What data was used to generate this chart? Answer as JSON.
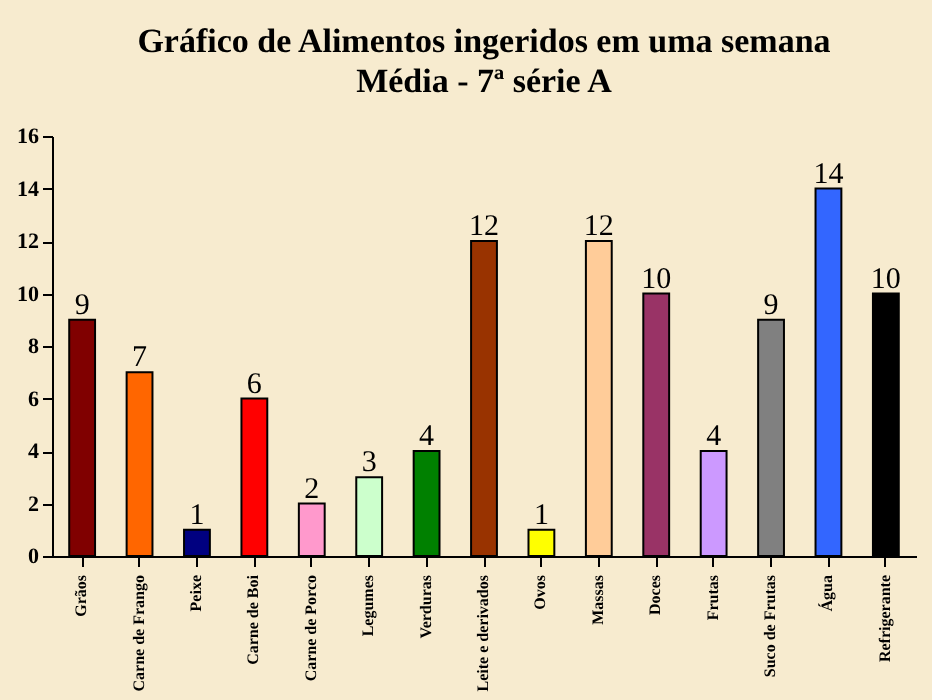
{
  "chart_data": {
    "type": "bar",
    "title": "Gráfico de Alimentos ingeridos em uma semana",
    "subtitle": "Média - 7ª série A",
    "categories": [
      "Grãos",
      "Carne de Frango",
      "Peixe",
      "Carne de Boi",
      "Carne de Porco",
      "Legumes",
      "Verduras",
      "Leite e derivados",
      "Ovos",
      "Massas",
      "Doces",
      "Frutas",
      "Suco de Frutas",
      "Água",
      "Refrigerante"
    ],
    "values": [
      9,
      7,
      1,
      6,
      2,
      3,
      4,
      12,
      1,
      12,
      10,
      4,
      9,
      14,
      10
    ],
    "colors": [
      "#800000",
      "#ff6600",
      "#000080",
      "#ff0000",
      "#ff99cc",
      "#ccffcc",
      "#008000",
      "#993300",
      "#ffff00",
      "#ffcc99",
      "#993366",
      "#cc99ff",
      "#808080",
      "#3366ff",
      "#000000"
    ],
    "ylim": [
      0,
      16
    ],
    "yticks": [
      0,
      2,
      4,
      6,
      8,
      10,
      12,
      14,
      16
    ],
    "data_labels": true,
    "grid": false
  }
}
